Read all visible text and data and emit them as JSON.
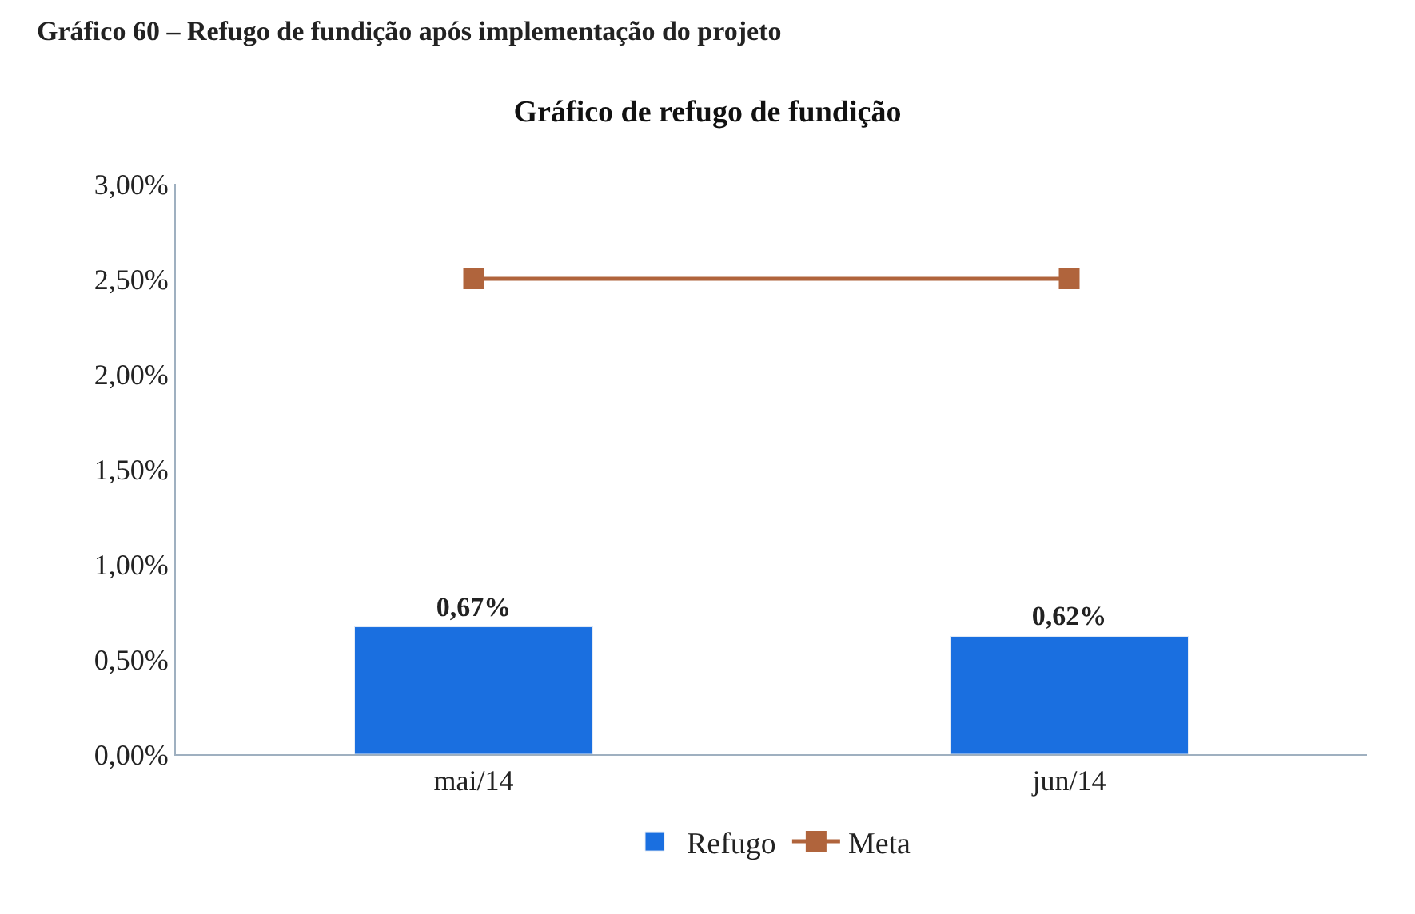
{
  "chart_data": {
    "type": "bar",
    "title": "Gráfico de refugo de fundição",
    "annotations": [
      "Gráfico 60 – Refugo de fundição após implementação do projeto"
    ],
    "categories": [
      "mai/14",
      "jun/14"
    ],
    "series": [
      {
        "name": "Refugo",
        "color": "#1a6fe0",
        "values": [
          0.67,
          0.62
        ],
        "value_labels": [
          "0,67%",
          "0,62%"
        ]
      },
      {
        "name": "Meta",
        "type": "line",
        "color": "#b0643c",
        "values": [
          2.5,
          2.5
        ],
        "marker": "square",
        "line_style": "solid"
      }
    ],
    "ylim": [
      0,
      3
    ],
    "yticks": [
      {
        "value": 0,
        "label": "0,00%"
      },
      {
        "value": 0.5,
        "label": "0,50%"
      },
      {
        "value": 1,
        "label": "1,00%"
      },
      {
        "value": 1.5,
        "label": "1,50%"
      },
      {
        "value": 2,
        "label": "2,00%"
      },
      {
        "value": 2.5,
        "label": "2,50%"
      },
      {
        "value": 3,
        "label": "3,00%"
      }
    ],
    "grid": false,
    "legend": "bottom"
  }
}
